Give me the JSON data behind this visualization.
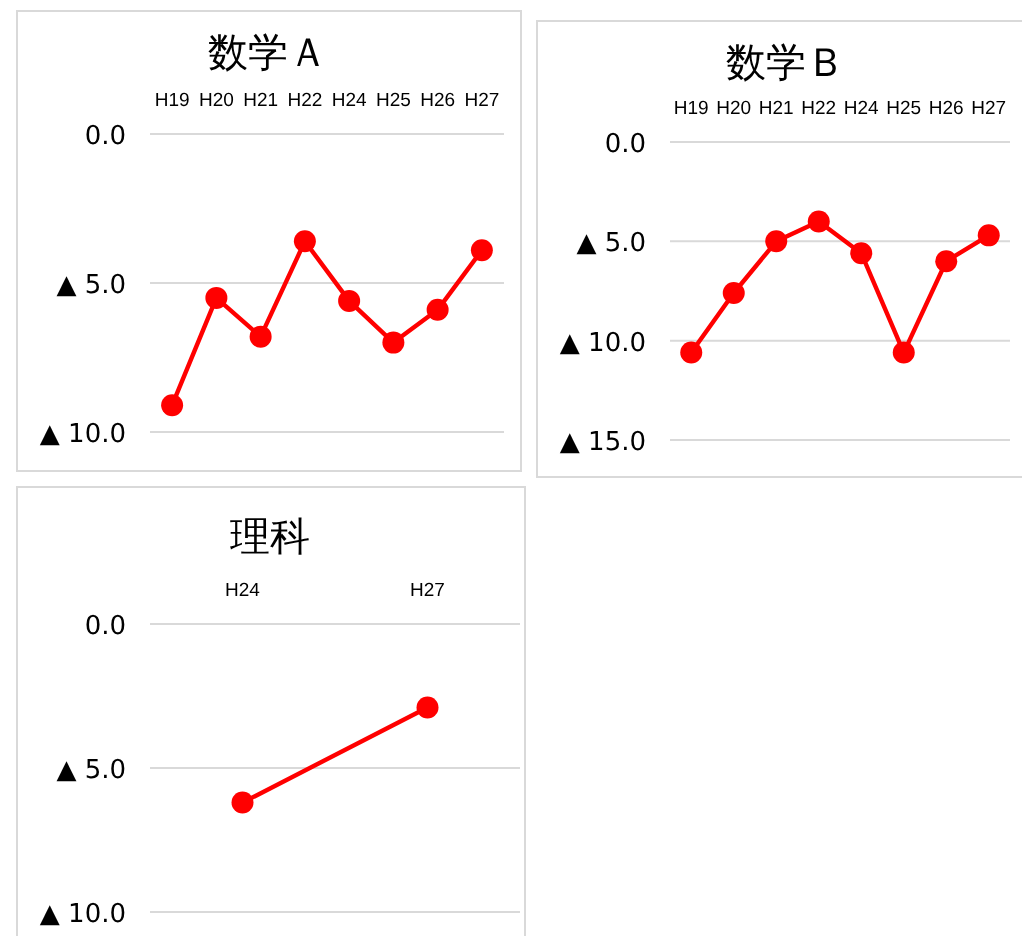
{
  "chart_data": [
    {
      "type": "line",
      "title": "数学Ａ",
      "categories": [
        "H19",
        "H20",
        "H21",
        "H22",
        "H24",
        "H25",
        "H26",
        "H27"
      ],
      "series": [
        {
          "color": "#ff0000",
          "values": [
            -9.1,
            -5.5,
            -6.8,
            -3.6,
            -5.6,
            -7.0,
            -5.9,
            -3.9
          ]
        }
      ],
      "ylim": [
        -10,
        0
      ],
      "yticks": [
        {
          "value": 0,
          "label": "0.0"
        },
        {
          "value": -5,
          "label": "▲ 5.0"
        },
        {
          "value": -10,
          "label": "▲ 10.0"
        }
      ],
      "grid": "y",
      "marker": "circle"
    },
    {
      "type": "line",
      "title": "数学Ｂ",
      "categories": [
        "H19",
        "H20",
        "H21",
        "H22",
        "H24",
        "H25",
        "H26",
        "H27"
      ],
      "series": [
        {
          "color": "#ff0000",
          "values": [
            -10.6,
            -7.6,
            -5.0,
            -4.0,
            -5.6,
            -10.6,
            -6.0,
            -4.7
          ]
        }
      ],
      "ylim": [
        -15,
        0
      ],
      "yticks": [
        {
          "value": 0,
          "label": "0.0"
        },
        {
          "value": -5,
          "label": "▲ 5.0"
        },
        {
          "value": -10,
          "label": "▲ 10.0"
        },
        {
          "value": -15,
          "label": "▲ 15.0"
        }
      ],
      "grid": "y",
      "marker": "circle"
    },
    {
      "type": "line",
      "title": "理科",
      "categories": [
        "H24",
        "H27"
      ],
      "series": [
        {
          "color": "#ff0000",
          "values": [
            -6.2,
            -2.9
          ]
        }
      ],
      "ylim": [
        -10,
        0
      ],
      "yticks": [
        {
          "value": 0,
          "label": "0.0"
        },
        {
          "value": -5,
          "label": "▲ 5.0"
        },
        {
          "value": -10,
          "label": "▲ 10.0"
        }
      ],
      "grid": "y",
      "marker": "circle"
    }
  ]
}
